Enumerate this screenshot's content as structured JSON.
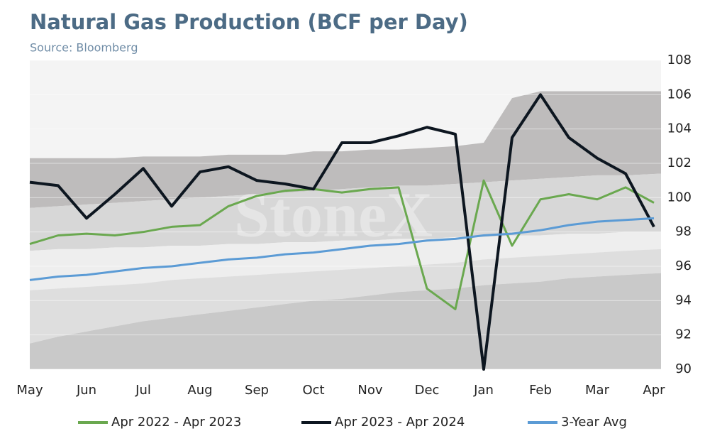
{
  "chart_data": {
    "type": "line",
    "title": "Natural Gas Production (BCF per Day)",
    "subtitle": "Source: Bloomberg",
    "watermark": "StoneX",
    "categories": [
      "May",
      null,
      "Jun",
      null,
      "Jul",
      null,
      "Aug",
      null,
      "Sep",
      null,
      "Oct",
      null,
      "Nov",
      null,
      "Dec",
      null,
      "Jan",
      null,
      "Feb",
      null,
      "Mar",
      null,
      "Apr"
    ],
    "ylim": [
      90,
      108
    ],
    "yticks": [
      90,
      92,
      94,
      96,
      98,
      100,
      102,
      104,
      106,
      108
    ],
    "grid": true,
    "legend": "bottom",
    "bands": [
      {
        "color": "#bebcbc",
        "values": [
          102.3,
          102.3,
          102.3,
          102.3,
          102.4,
          102.4,
          102.4,
          102.5,
          102.5,
          102.5,
          102.7,
          102.7,
          102.8,
          102.8,
          102.9,
          103.0,
          103.2,
          105.8,
          106.2,
          106.2,
          106.2,
          106.2,
          106.2
        ]
      },
      {
        "color": "#d7d7d7",
        "values": [
          99.4,
          99.5,
          99.6,
          99.7,
          99.8,
          99.9,
          100.0,
          100.1,
          100.2,
          100.3,
          100.4,
          100.5,
          100.6,
          100.7,
          100.7,
          100.8,
          100.9,
          101.0,
          101.1,
          101.2,
          101.3,
          101.3,
          101.4
        ]
      },
      {
        "color": "#eeeeee",
        "values": [
          96.9,
          97.0,
          97.0,
          97.1,
          97.1,
          97.2,
          97.2,
          97.3,
          97.3,
          97.4,
          97.4,
          97.5,
          97.5,
          97.6,
          97.6,
          97.7,
          97.7,
          97.8,
          97.8,
          97.9,
          97.9,
          98.0,
          98.0
        ]
      },
      {
        "color": "#dedede",
        "values": [
          94.6,
          94.7,
          94.8,
          94.9,
          95.0,
          95.2,
          95.3,
          95.4,
          95.5,
          95.6,
          95.7,
          95.8,
          95.9,
          96.0,
          96.1,
          96.2,
          96.4,
          96.5,
          96.6,
          96.7,
          96.8,
          96.9,
          97.0
        ]
      },
      {
        "color": "#c9c9c9",
        "values": [
          91.5,
          91.9,
          92.2,
          92.5,
          92.8,
          93.0,
          93.2,
          93.4,
          93.6,
          93.8,
          94.0,
          94.1,
          94.3,
          94.5,
          94.6,
          94.7,
          94.9,
          95.0,
          95.1,
          95.3,
          95.4,
          95.5,
          95.6
        ]
      }
    ],
    "series": [
      {
        "name": "Apr 2022 - Apr 2023",
        "color": "#6aa84f",
        "values": [
          97.3,
          97.8,
          97.9,
          97.8,
          98.0,
          98.3,
          98.4,
          99.5,
          100.1,
          100.4,
          100.5,
          100.3,
          100.5,
          100.6,
          94.7,
          93.5,
          101.0,
          97.2,
          99.9,
          100.2,
          99.9,
          100.6,
          99.7
        ]
      },
      {
        "name": "Apr 2023 - Apr 2024",
        "color": "#0d1620",
        "values": [
          100.9,
          100.7,
          98.8,
          100.2,
          101.7,
          99.5,
          101.5,
          101.8,
          101.0,
          100.8,
          100.5,
          103.2,
          103.2,
          103.6,
          104.1,
          103.7,
          90.0,
          103.5,
          106.0,
          103.5,
          102.3,
          101.4,
          98.3
        ]
      },
      {
        "name": "3-Year Avg",
        "color": "#5b9bd5",
        "values": [
          95.2,
          95.4,
          95.5,
          95.7,
          95.9,
          96.0,
          96.2,
          96.4,
          96.5,
          96.7,
          96.8,
          97.0,
          97.2,
          97.3,
          97.5,
          97.6,
          97.8,
          97.9,
          98.1,
          98.4,
          98.6,
          98.7,
          98.8
        ]
      }
    ]
  }
}
